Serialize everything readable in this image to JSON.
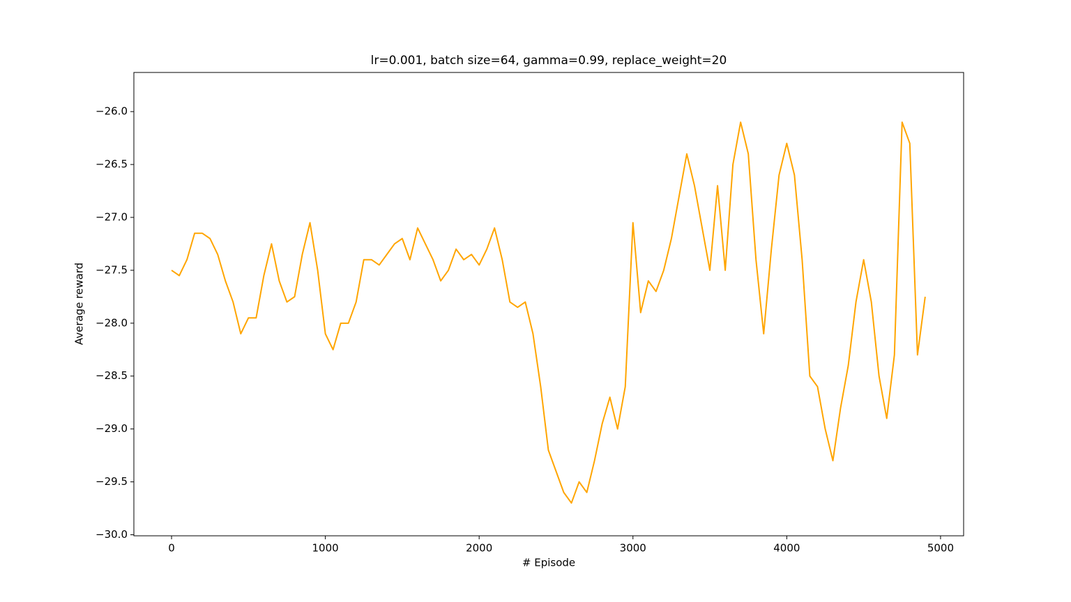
{
  "chart_data": {
    "type": "line",
    "title": "lr=0.001, batch size=64, gamma=0.99, replace_weight=20",
    "x_label": "# Episode",
    "y_label": "Average reward",
    "x": [
      0,
      50,
      100,
      150,
      200,
      250,
      300,
      350,
      400,
      450,
      500,
      550,
      600,
      650,
      700,
      750,
      800,
      850,
      900,
      950,
      1000,
      1050,
      1100,
      1150,
      1200,
      1250,
      1300,
      1350,
      1400,
      1450,
      1500,
      1550,
      1600,
      1650,
      1700,
      1750,
      1800,
      1850,
      1900,
      1950,
      2000,
      2050,
      2100,
      2150,
      2200,
      2250,
      2300,
      2350,
      2400,
      2450,
      2500,
      2550,
      2600,
      2650,
      2700,
      2750,
      2800,
      2850,
      2900,
      2950,
      3000,
      3050,
      3100,
      3150,
      3200,
      3250,
      3300,
      3350,
      3400,
      3450,
      3500,
      3550,
      3600,
      3650,
      3700,
      3750,
      3800,
      3850,
      3900,
      3950,
      4000,
      4050,
      4100,
      4150,
      4200,
      4250,
      4300,
      4350,
      4400,
      4450,
      4500,
      4550,
      4600,
      4650,
      4700,
      4750,
      4800,
      4850,
      4900
    ],
    "series": [
      {
        "name": "Average reward",
        "color": "#ffa500",
        "values": [
          -27.5,
          -27.55,
          -27.4,
          -27.15,
          -27.15,
          -27.2,
          -27.35,
          -27.6,
          -27.8,
          -28.1,
          -27.95,
          -27.95,
          -27.55,
          -27.25,
          -27.6,
          -27.8,
          -27.75,
          -27.35,
          -27.05,
          -27.5,
          -28.1,
          -28.25,
          -28.0,
          -28.0,
          -27.8,
          -27.4,
          -27.4,
          -27.45,
          -27.35,
          -27.25,
          -27.2,
          -27.4,
          -27.1,
          -27.25,
          -27.4,
          -27.6,
          -27.5,
          -27.3,
          -27.4,
          -27.35,
          -27.45,
          -27.3,
          -27.1,
          -27.4,
          -27.8,
          -27.85,
          -27.8,
          -28.1,
          -28.6,
          -29.2,
          -29.4,
          -29.6,
          -29.7,
          -29.5,
          -29.6,
          -29.3,
          -28.95,
          -28.7,
          -29.0,
          -28.6,
          -27.05,
          -27.9,
          -27.6,
          -27.7,
          -27.5,
          -27.2,
          -26.8,
          -26.4,
          -26.7,
          -27.1,
          -27.5,
          -26.7,
          -27.5,
          -26.5,
          -26.1,
          -26.4,
          -27.4,
          -28.1,
          -27.3,
          -26.6,
          -26.3,
          -26.6,
          -27.4,
          -28.5,
          -28.6,
          -29.0,
          -29.3,
          -28.8,
          -28.4,
          -27.8,
          -27.4,
          -27.8,
          -28.5,
          -28.9,
          -28.3,
          -26.1,
          -26.3,
          -28.3,
          -27.75
        ]
      }
    ],
    "xlim": [
      -245,
      5150
    ],
    "ylim": [
      -30.01,
      -25.63
    ],
    "xticks": [
      0,
      1000,
      2000,
      3000,
      4000,
      5000
    ],
    "yticks": [
      {
        "value": -30.0,
        "label": "−30.0"
      },
      {
        "value": -29.5,
        "label": "−29.5"
      },
      {
        "value": -29.0,
        "label": "−29.0"
      },
      {
        "value": -28.5,
        "label": "−28.5"
      },
      {
        "value": -28.0,
        "label": "−28.0"
      },
      {
        "value": -27.5,
        "label": "−27.5"
      },
      {
        "value": -27.0,
        "label": "−27.0"
      },
      {
        "value": -26.5,
        "label": "−26.5"
      },
      {
        "value": -26.0,
        "label": "−26.0"
      }
    ],
    "grid": false
  }
}
